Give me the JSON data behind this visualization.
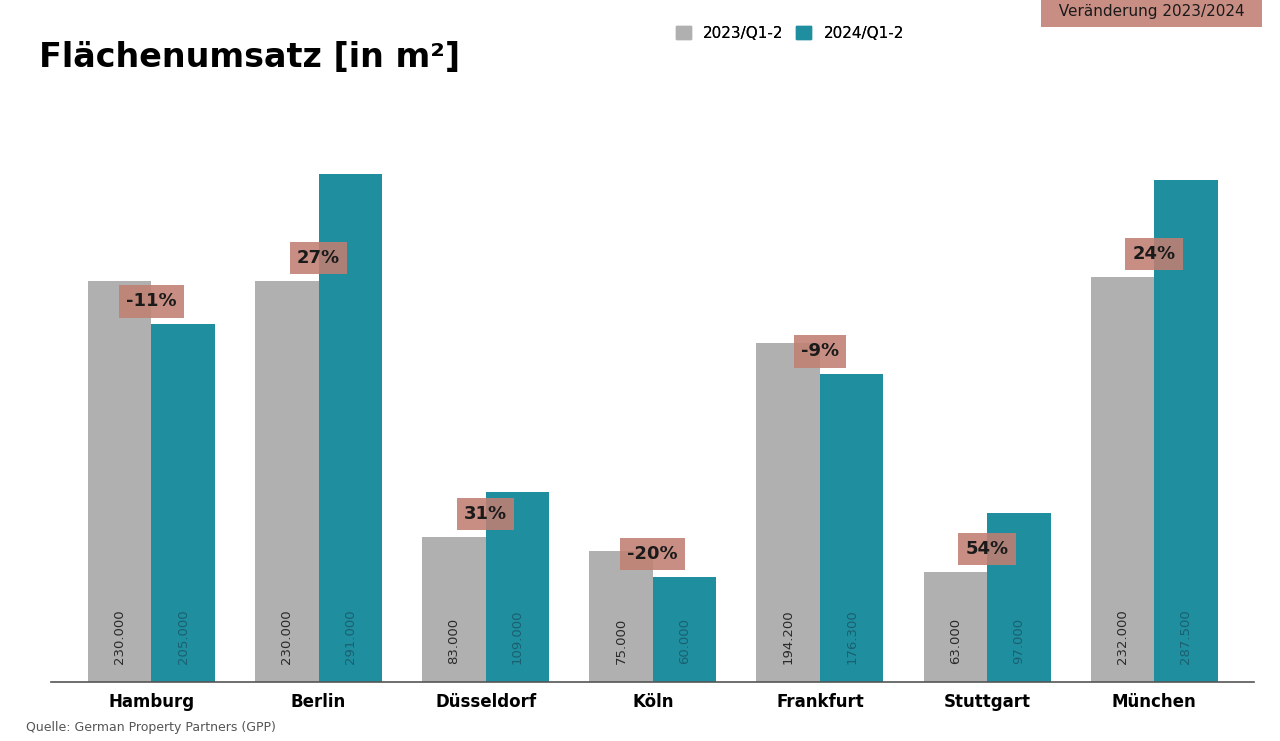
{
  "title": "Flächenumsatz [in m²]",
  "subtitle_source": "Quelle: German Property Partners (GPP)",
  "legend_2023": "2023/Q1-2",
  "legend_2024": "2024/Q1-2",
  "legend_change": "Veränderung 2023/2024",
  "categories": [
    "Hamburg",
    "Berlin",
    "Düsseldorf",
    "Köln",
    "Frankfurt",
    "Stuttgart",
    "München"
  ],
  "values_2023": [
    230000,
    230000,
    83000,
    75000,
    194200,
    63000,
    232000
  ],
  "values_2024": [
    205000,
    291000,
    109000,
    60000,
    176300,
    97000,
    287500
  ],
  "changes": [
    "-11%",
    "27%",
    "31%",
    "-20%",
    "-9%",
    "54%",
    "24%"
  ],
  "bar_color_2023": "#b0b0b0",
  "bar_color_2024": "#1f8fa0",
  "change_box_color": "#c17f72",
  "change_box_edge": "#a86355",
  "change_text_color": "#1a1a1a",
  "value_label_color_2023": "#2a2a2a",
  "value_label_color_2024": "#1a6070",
  "bg_color": "#ffffff",
  "title_fontsize": 24,
  "label_fontsize": 9.5,
  "category_fontsize": 12,
  "change_fontsize": 13,
  "legend_fontsize": 11,
  "source_fontsize": 9,
  "ylim": [
    0,
    340000
  ],
  "bar_width": 0.38
}
